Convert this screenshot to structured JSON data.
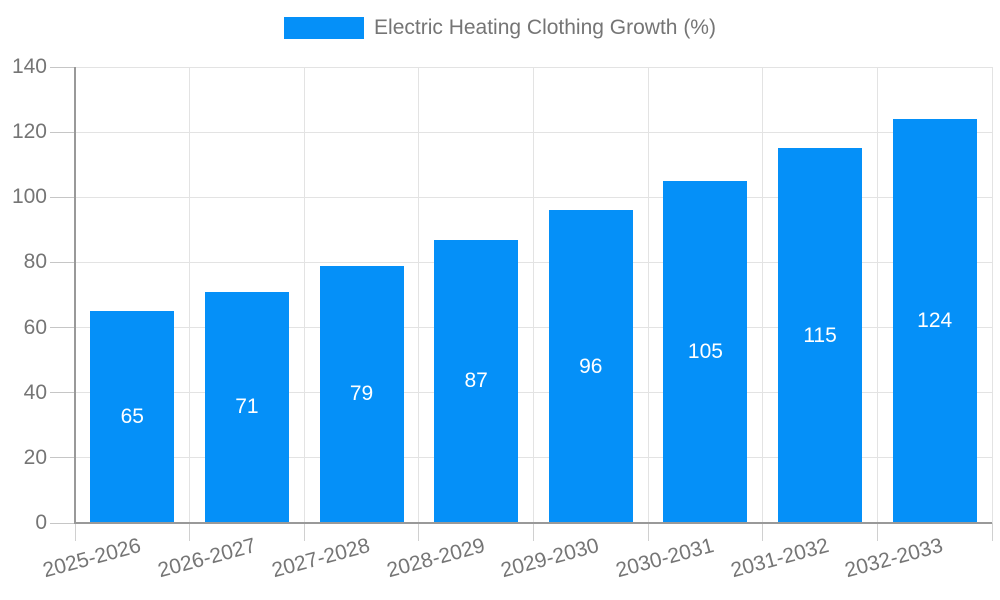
{
  "legend": {
    "label": "Electric Heating Clothing Growth (%)"
  },
  "chart_data": {
    "type": "bar",
    "title": "Electric Heating Clothing Growth (%)",
    "categories": [
      "2025-2026",
      "2026-2027",
      "2027-2028",
      "2028-2029",
      "2029-2030",
      "2030-2031",
      "2031-2032",
      "2032-2033"
    ],
    "values": [
      65,
      71,
      79,
      87,
      96,
      105,
      115,
      124
    ],
    "series_name": "Electric Heating Clothing Growth (%)",
    "xlabel": "",
    "ylabel": "",
    "ylim": [
      0,
      140
    ],
    "yticks": [
      0,
      20,
      40,
      60,
      80,
      100,
      120,
      140
    ],
    "grid": true,
    "legend_position": "top-center",
    "value_labels": "inside-center",
    "colors": {
      "bar": "#0590f8",
      "value_label": "#ffffff",
      "axis_line": "#999999",
      "grid_line": "#e3e3e3",
      "tick_line": "#c6c6c6",
      "axis_text": "#757575",
      "background": "#ffffff"
    }
  }
}
